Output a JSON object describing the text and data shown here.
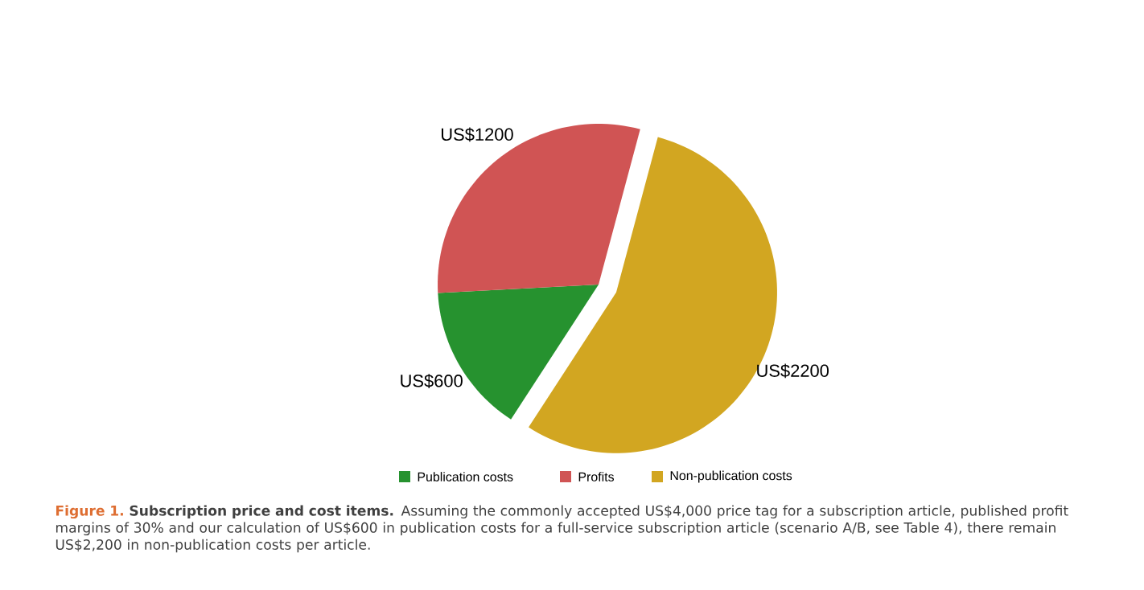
{
  "chart_data": {
    "type": "pie",
    "title": "Figure 1.",
    "annotations": [
      "**Subscription price and cost items.** Assuming the commonly accepted US$4,000 price tag for a subscription article, published profit margins of 30% and our calculation of US$600 in publication costs for a full-service subscription article (scenario A/B, see Table 4), there remain US$2,200 in non-publication costs per article."
    ],
    "categories": [
      "Publication costs",
      "Profits",
      "Non-publication costs"
    ],
    "values": [
      600,
      1200,
      2200
    ],
    "value_labels": [
      "US$600",
      "US$1200",
      "US$2200"
    ],
    "colors": [
      "#26922f",
      "#d05454",
      "#d2a621"
    ],
    "legend": "bottom"
  }
}
